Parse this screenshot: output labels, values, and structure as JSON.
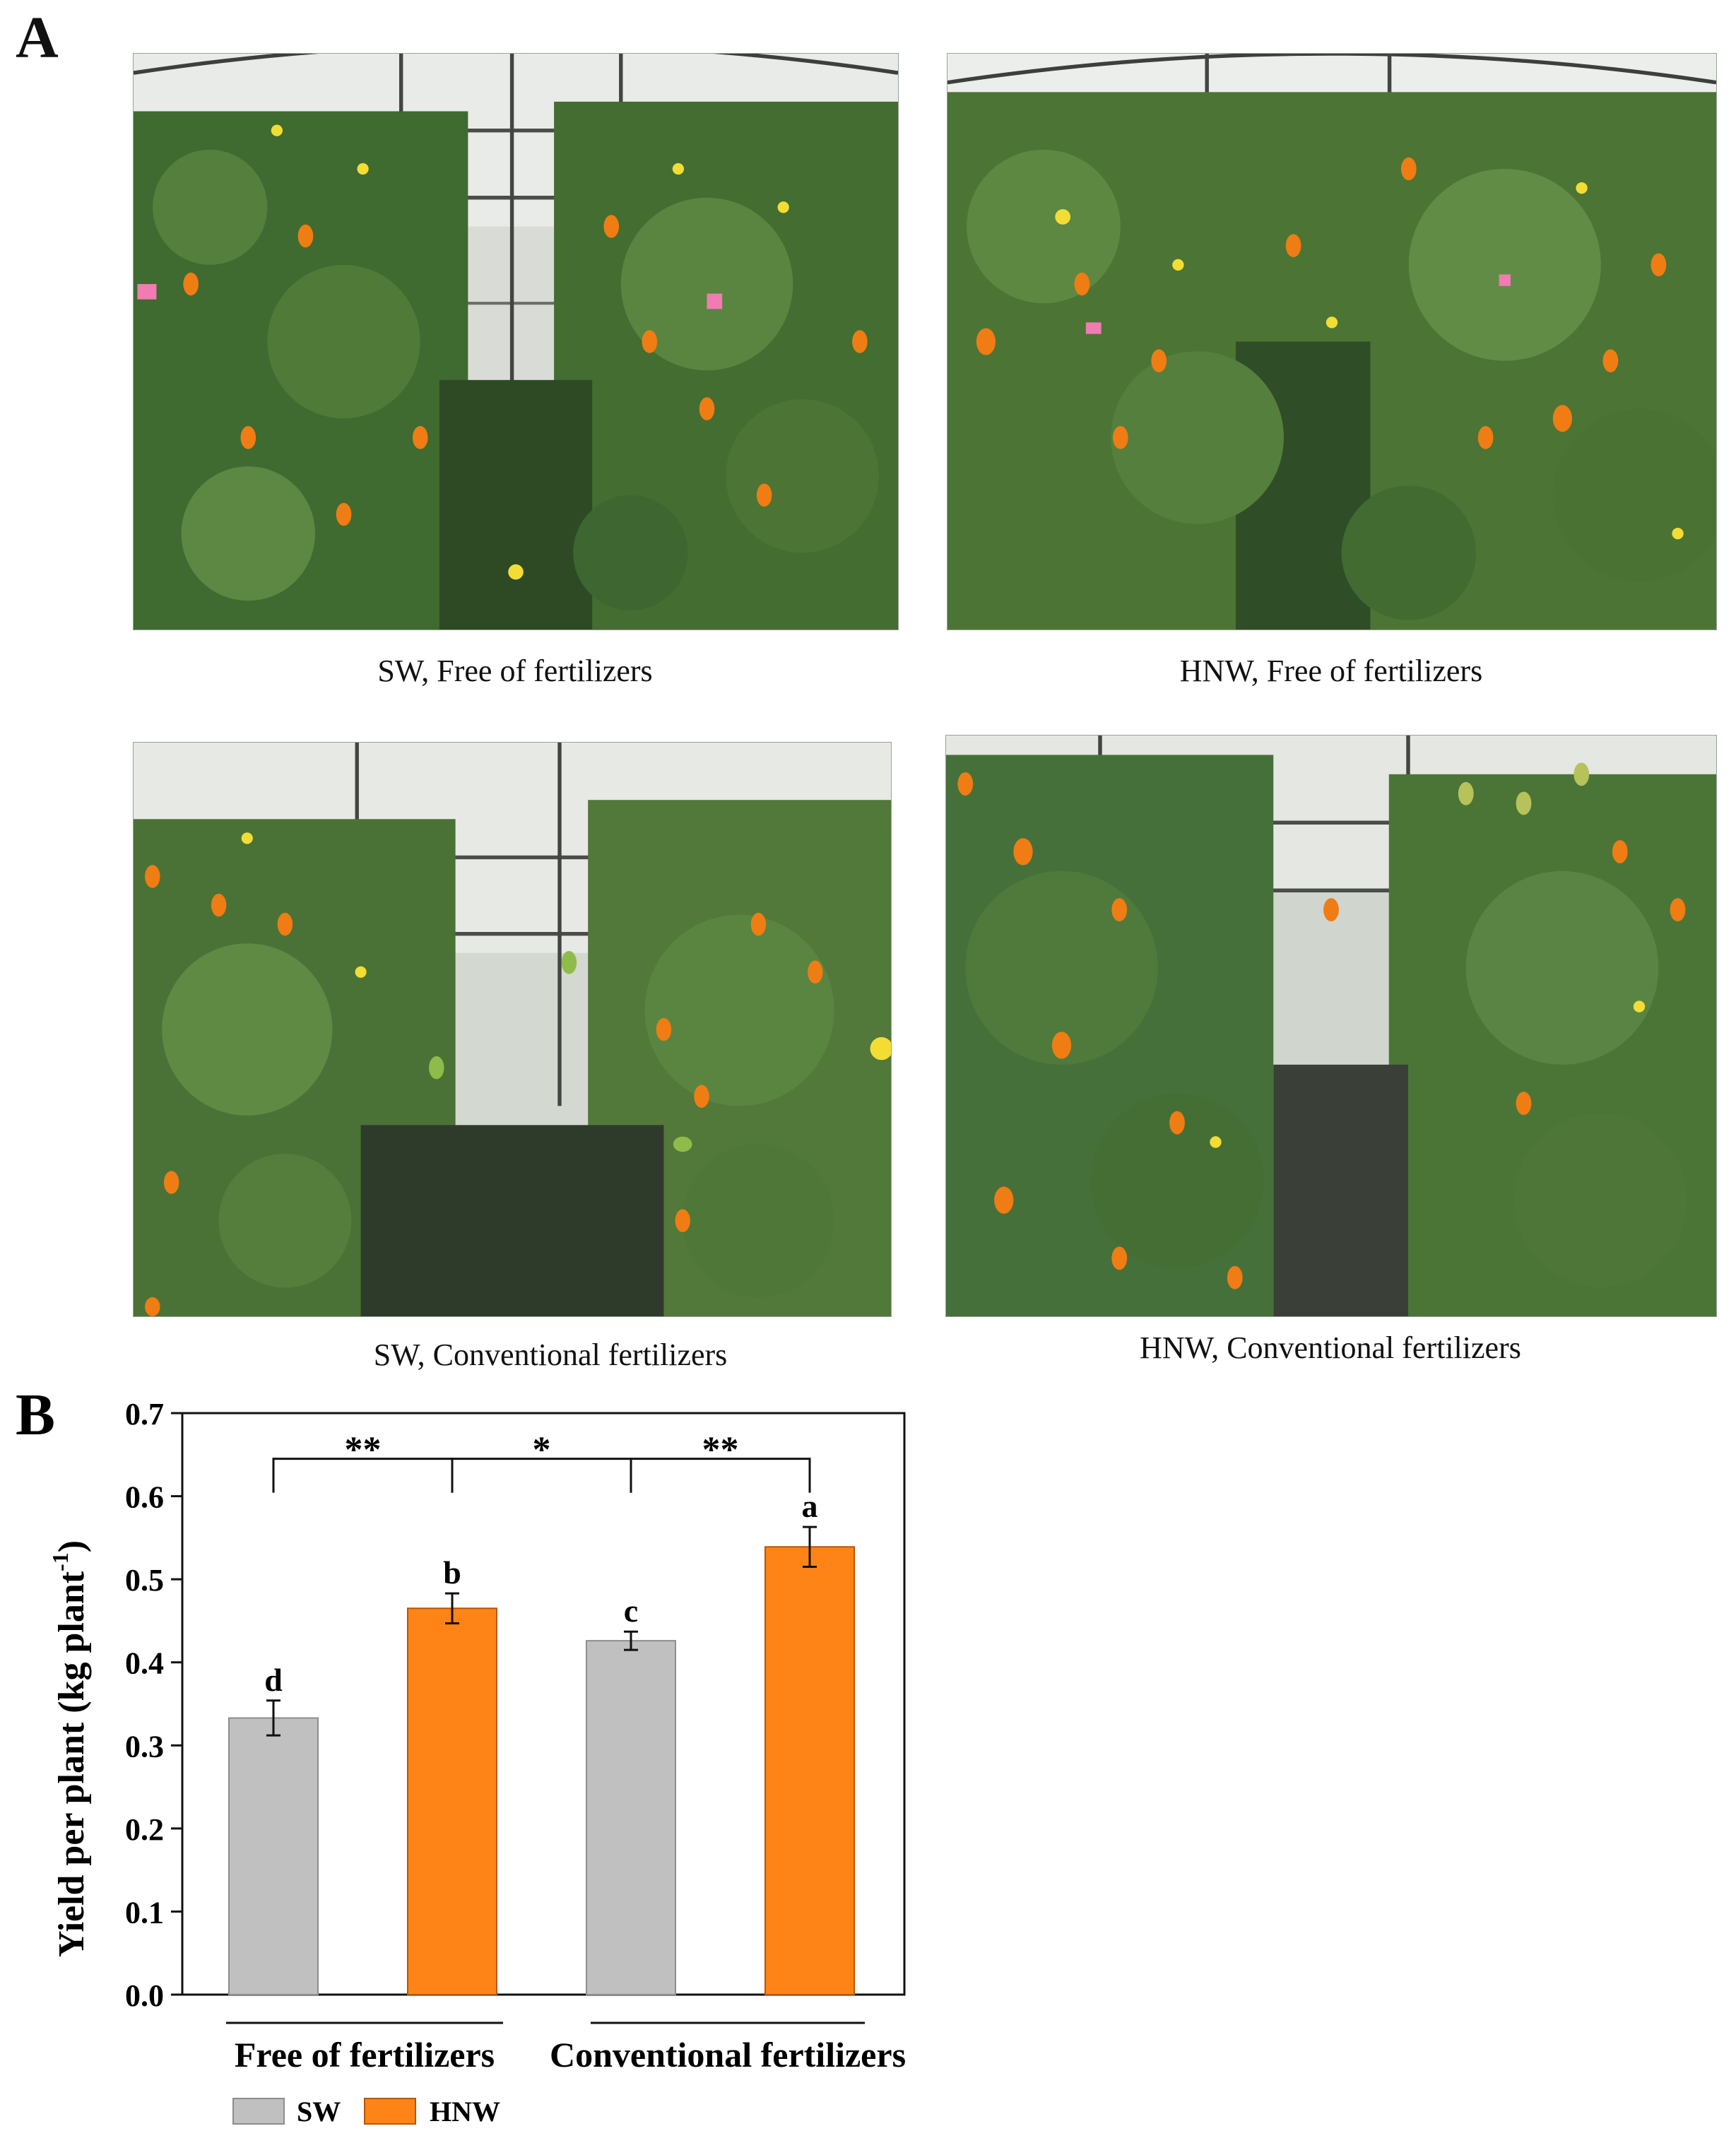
{
  "panel_a": {
    "letter": "A",
    "photos": [
      {
        "caption": "SW, Free of fertilizers",
        "subject": "greenhouse-tomato-plants"
      },
      {
        "caption": "HNW, Free of fertilizers",
        "subject": "greenhouse-tomato-plants"
      },
      {
        "caption": "SW, Conventional fertilizers",
        "subject": "greenhouse-tomato-plants"
      },
      {
        "caption": "HNW, Conventional fertilizers",
        "subject": "greenhouse-tomato-plants"
      }
    ]
  },
  "panel_b": {
    "letter": "B"
  },
  "colors": {
    "sw": "#c0c0c0",
    "hnw": "#ff8418",
    "frame": "#111111"
  },
  "chart_data": {
    "type": "bar",
    "ylabel": "Yield per plant (kg plant",
    "ylabel_sup": "-1",
    "ylabel_close": ")",
    "ylim": [
      0.0,
      0.7
    ],
    "yticks": [
      "0.0",
      "0.1",
      "0.2",
      "0.3",
      "0.4",
      "0.5",
      "0.6",
      "0.7"
    ],
    "groups": [
      "Free of fertilizers",
      "Conventional fertilizers"
    ],
    "series": [
      {
        "name": "SW",
        "values": [
          0.333,
          0.426
        ],
        "errors": [
          0.021,
          0.011
        ]
      },
      {
        "name": "HNW",
        "values": [
          0.465,
          0.539
        ],
        "errors": [
          0.018,
          0.024
        ]
      }
    ],
    "bars": [
      {
        "series": "SW",
        "group": "Free of fertilizers",
        "value": 0.333,
        "error": 0.021,
        "letter": "d"
      },
      {
        "series": "HNW",
        "group": "Free of fertilizers",
        "value": 0.465,
        "error": 0.018,
        "letter": "b"
      },
      {
        "series": "SW",
        "group": "Conventional fertilizers",
        "value": 0.426,
        "error": 0.011,
        "letter": "c"
      },
      {
        "series": "HNW",
        "group": "Conventional fertilizers",
        "value": 0.539,
        "error": 0.024,
        "letter": "a"
      }
    ],
    "comparisons": [
      {
        "from": 0,
        "to": 1,
        "label": "**"
      },
      {
        "from": 1,
        "to": 2,
        "label": "*"
      },
      {
        "from": 2,
        "to": 3,
        "label": "**"
      }
    ],
    "legend": {
      "position": "bottom-left",
      "items": [
        "SW",
        "HNW"
      ]
    }
  }
}
